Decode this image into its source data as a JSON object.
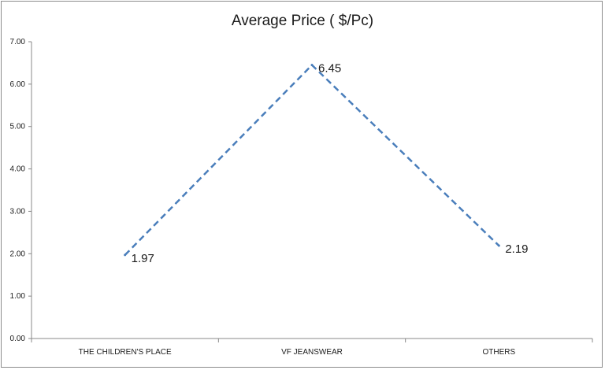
{
  "chart_data": {
    "type": "line",
    "title": "Average Price ( $/Pc)",
    "xlabel": "",
    "ylabel": "",
    "categories": [
      "THE CHILDREN'S PLACE",
      "VF JEANSWEAR",
      "OTHERS"
    ],
    "series": [
      {
        "values": [
          1.97,
          6.45,
          2.19
        ],
        "color": "#4a7ebb",
        "line_style": "dashed"
      }
    ],
    "data_labels": [
      "1.97",
      "6.45",
      "2.19"
    ],
    "ylim": [
      0,
      7
    ],
    "yticks": [
      "0.00",
      "1.00",
      "2.00",
      "3.00",
      "4.00",
      "5.00",
      "6.00",
      "7.00"
    ],
    "grid": false,
    "legend": "none"
  }
}
